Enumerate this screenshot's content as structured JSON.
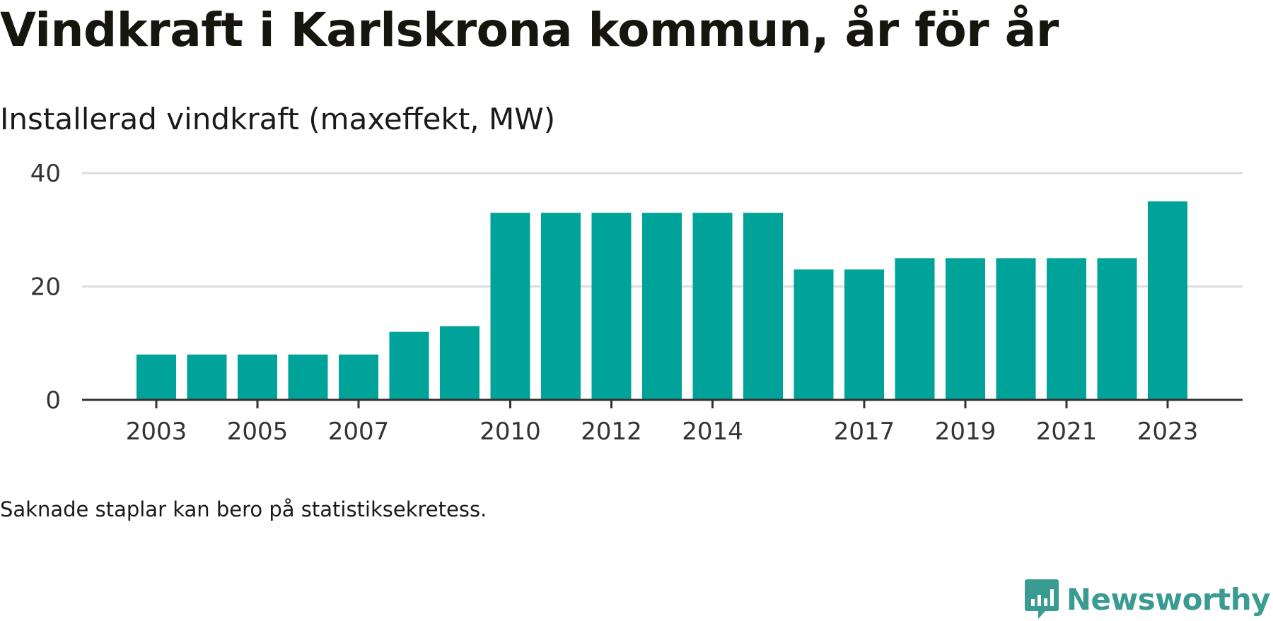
{
  "title": "Vindkraft i Karlskrona kommun, år för år",
  "subtitle": "Installerad vindkraft (maxeffekt, MW)",
  "footnote": "Saknade staplar kan bero på statistiksekretess.",
  "brand": {
    "name": "Newsworthy",
    "logo_icon": "newsworthy-logo-icon",
    "color": "#3a9b92"
  },
  "colors": {
    "bar": "#00a39a",
    "grid": "#dddddd",
    "axis": "#333333",
    "tick_text": "#333333"
  },
  "chart_data": {
    "type": "bar",
    "title": "Vindkraft i Karlskrona kommun, år för år",
    "subtitle": "Installerad vindkraft (maxeffekt, MW)",
    "xlabel": "",
    "ylabel": "",
    "categories": [
      "2003",
      "2004",
      "2005",
      "2006",
      "2007",
      "2008",
      "2009",
      "2010",
      "2011",
      "2012",
      "2013",
      "2014",
      "2015",
      "2016",
      "2017",
      "2018",
      "2019",
      "2020",
      "2021",
      "2022",
      "2023"
    ],
    "values": [
      8,
      8,
      8,
      8,
      8,
      12,
      13,
      33,
      33,
      33,
      33,
      33,
      33,
      23,
      23,
      25,
      25,
      25,
      25,
      25,
      35
    ],
    "x_tick_labels": [
      "2003",
      "2005",
      "2007",
      "2010",
      "2012",
      "2014",
      "2017",
      "2019",
      "2021",
      "2023"
    ],
    "y_ticks": [
      0,
      20,
      40
    ],
    "ylim": [
      0,
      40
    ],
    "grid": true,
    "legend": "none"
  }
}
